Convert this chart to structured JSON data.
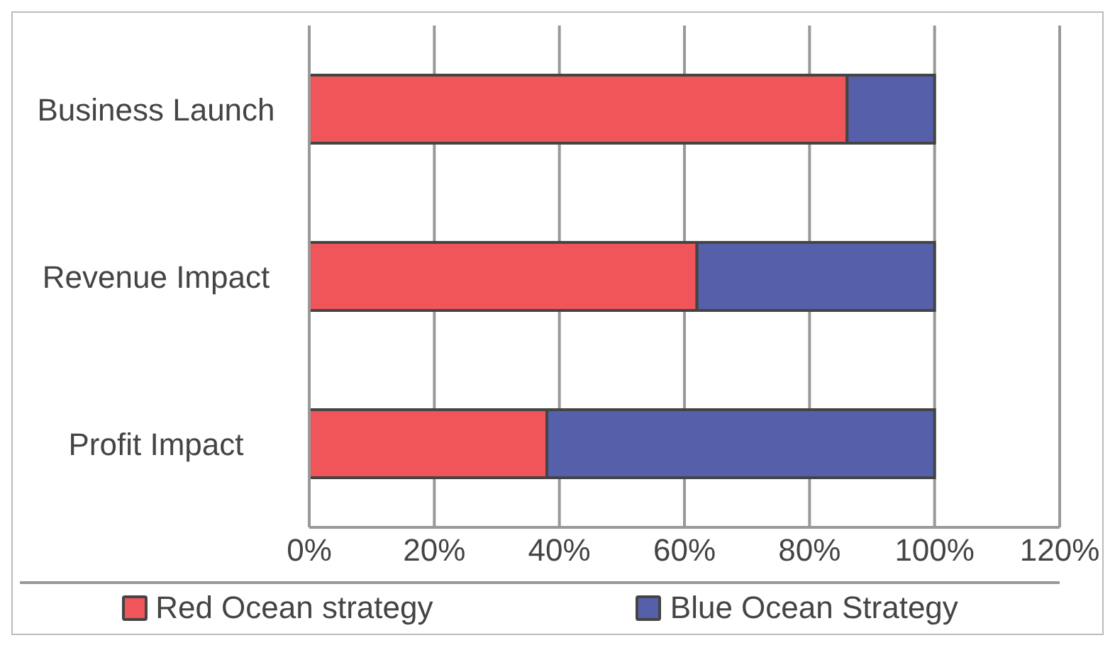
{
  "chart_data": {
    "type": "bar",
    "orientation": "horizontal",
    "stacked": true,
    "categories": [
      "Business Launch",
      "Revenue Impact",
      "Profit Impact"
    ],
    "series": [
      {
        "name": "Red Ocean strategy",
        "color": "#f0555a",
        "values": [
          86,
          62,
          38
        ]
      },
      {
        "name": "Blue  Ocean Strategy",
        "color": "#5660aa",
        "values": [
          14,
          38,
          62
        ]
      }
    ],
    "xlim": [
      0,
      120
    ],
    "xticks": [
      {
        "value": 0,
        "label": "0%"
      },
      {
        "value": 20,
        "label": "20%"
      },
      {
        "value": 40,
        "label": "40%"
      },
      {
        "value": 60,
        "label": "60%"
      },
      {
        "value": 80,
        "label": "80%"
      },
      {
        "value": 100,
        "label": "100%"
      },
      {
        "value": 120,
        "label": "120%"
      }
    ],
    "grid": "x",
    "legend": "bottom"
  }
}
